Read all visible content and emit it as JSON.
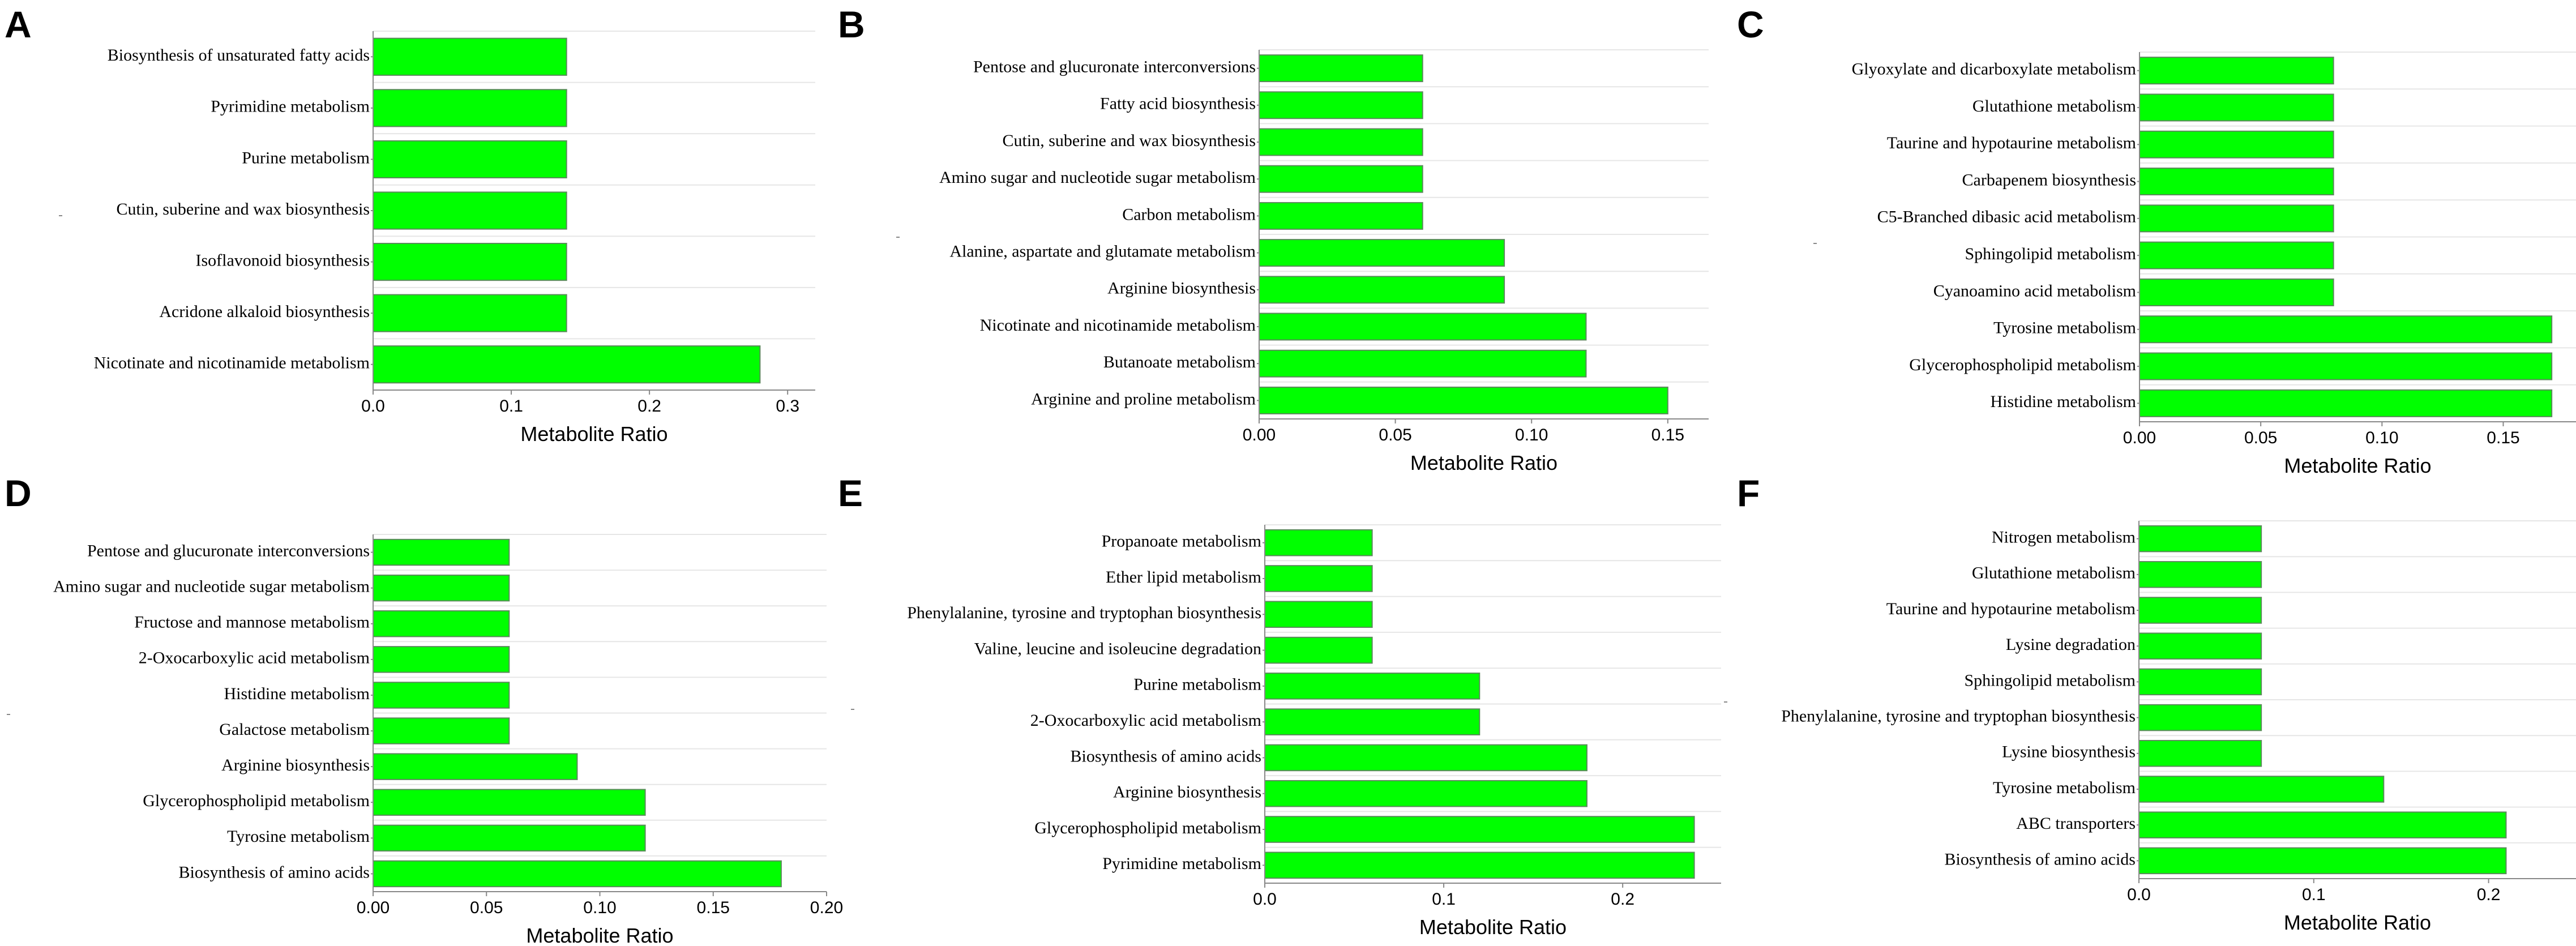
{
  "figure_colors": {
    "bar_fill": "#00ff00"
  },
  "chart_data": [
    {
      "panel": "A",
      "type": "bar",
      "orientation": "horizontal",
      "xlabel": "Metabolite Ratio",
      "xlim": [
        0,
        0.32
      ],
      "xticks": [
        0,
        0.1,
        0.2,
        0.3
      ],
      "xtick_labels": [
        "0.0",
        "0.1",
        "0.2",
        "0.3"
      ],
      "categories": [
        "Biosynthesis of unsaturated fatty acids",
        "Pyrimidine metabolism",
        "Purine metabolism",
        "Cutin, suberine and wax biosynthesis",
        "Isoflavonoid biosynthesis",
        "Acridone alkaloid biosynthesis",
        "Nicotinate and nicotinamide metabolism"
      ],
      "values": [
        0.14,
        0.14,
        0.14,
        0.14,
        0.14,
        0.14,
        0.28
      ]
    },
    {
      "panel": "B",
      "type": "bar",
      "orientation": "horizontal",
      "xlabel": "Metabolite Ratio",
      "xlim": [
        0,
        0.165
      ],
      "xticks": [
        0,
        0.05,
        0.1,
        0.15
      ],
      "xtick_labels": [
        "0.00",
        "0.05",
        "0.10",
        "0.15"
      ],
      "categories": [
        "Pentose and glucuronate interconversions",
        "Fatty acid biosynthesis",
        "Cutin, suberine and wax biosynthesis",
        "Amino sugar and nucleotide sugar metabolism",
        "Carbon metabolism",
        "Alanine, aspartate and glutamate metabolism",
        "Arginine biosynthesis",
        "Nicotinate and nicotinamide metabolism",
        "Butanoate metabolism",
        "Arginine and proline metabolism"
      ],
      "values": [
        0.06,
        0.06,
        0.06,
        0.06,
        0.06,
        0.09,
        0.09,
        0.12,
        0.12,
        0.15
      ]
    },
    {
      "panel": "C",
      "type": "bar",
      "orientation": "horizontal",
      "xlabel": "Metabolite Ratio",
      "xlim": [
        0,
        0.18
      ],
      "xticks": [
        0,
        0.05,
        0.1,
        0.15
      ],
      "xtick_labels": [
        "0.00",
        "0.05",
        "0.10",
        "0.15"
      ],
      "categories": [
        "Glyoxylate and dicarboxylate metabolism",
        "Glutathione metabolism",
        "Taurine and hypotaurine metabolism",
        "Carbapenem biosynthesis",
        "C5-Branched dibasic acid metabolism",
        "Sphingolipid metabolism",
        "Cyanoamino acid metabolism",
        "Tyrosine metabolism",
        "Glycerophospholipid metabolism",
        "Histidine metabolism"
      ],
      "values": [
        0.08,
        0.08,
        0.08,
        0.08,
        0.08,
        0.08,
        0.08,
        0.17,
        0.17,
        0.17
      ]
    },
    {
      "panel": "D",
      "type": "bar",
      "orientation": "horizontal",
      "xlabel": "Metabolite Ratio",
      "xlim": [
        0,
        0.2
      ],
      "xticks": [
        0,
        0.05,
        0.1,
        0.15,
        0.2
      ],
      "xtick_labels": [
        "0.00",
        "0.05",
        "0.10",
        "0.15",
        "0.20"
      ],
      "categories": [
        "Pentose and glucuronate interconversions",
        "Amino sugar and nucleotide sugar metabolism",
        "Fructose and mannose metabolism",
        "2-Oxocarboxylic acid metabolism",
        "Histidine metabolism",
        "Galactose metabolism",
        "Arginine biosynthesis",
        "Glycerophospholipid metabolism",
        "Tyrosine metabolism",
        "Biosynthesis of amino acids"
      ],
      "values": [
        0.06,
        0.06,
        0.06,
        0.06,
        0.06,
        0.06,
        0.09,
        0.12,
        0.12,
        0.18
      ]
    },
    {
      "panel": "E",
      "type": "bar",
      "orientation": "horizontal",
      "xlabel": "Metabolite Ratio",
      "xlim": [
        0,
        0.255
      ],
      "xticks": [
        0,
        0.1,
        0.2
      ],
      "xtick_labels": [
        "0.0",
        "0.1",
        "0.2"
      ],
      "categories": [
        "Propanoate metabolism",
        "Ether lipid metabolism",
        "Phenylalanine, tyrosine and tryptophan biosynthesis",
        "Valine, leucine and isoleucine degradation",
        "Purine metabolism",
        "2-Oxocarboxylic acid metabolism",
        "Biosynthesis of amino acids",
        "Arginine biosynthesis",
        "Glycerophospholipid metabolism",
        "Pyrimidine metabolism"
      ],
      "values": [
        0.06,
        0.06,
        0.06,
        0.06,
        0.12,
        0.12,
        0.18,
        0.18,
        0.24,
        0.24
      ]
    },
    {
      "panel": "F",
      "type": "bar",
      "orientation": "horizontal",
      "xlabel": "Metabolite Ratio",
      "xlim": [
        0,
        0.25
      ],
      "xticks": [
        0,
        0.1,
        0.2
      ],
      "xtick_labels": [
        "0.0",
        "0.1",
        "0.2"
      ],
      "categories": [
        "Nitrogen metabolism",
        "Glutathione metabolism",
        "Taurine and hypotaurine metabolism",
        "Lysine degradation",
        "Sphingolipid metabolism",
        "Phenylalanine, tyrosine and tryptophan biosynthesis",
        "Lysine biosynthesis",
        "Tyrosine metabolism",
        "ABC transporters",
        "Biosynthesis of amino acids"
      ],
      "values": [
        0.07,
        0.07,
        0.07,
        0.07,
        0.07,
        0.07,
        0.07,
        0.14,
        0.21,
        0.21
      ]
    }
  ]
}
